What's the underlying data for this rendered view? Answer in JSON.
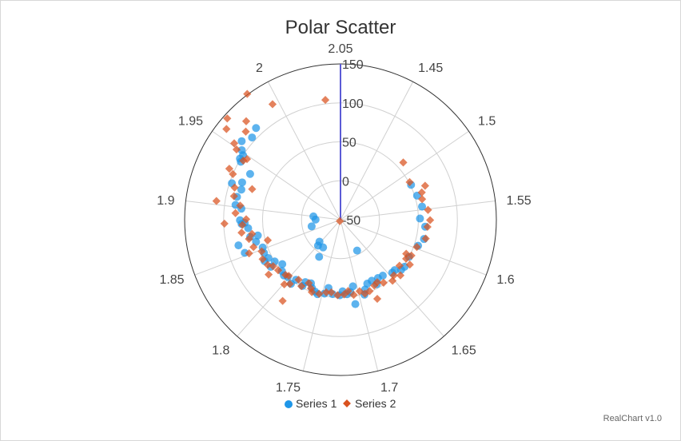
{
  "chart_data": {
    "type": "scatter",
    "coordinate_system": "polar",
    "title": "Polar Scatter",
    "credit": "RealChart v1.0",
    "angular_axis": {
      "ticks": [
        "1.45",
        "1.5",
        "1.55",
        "1.6",
        "1.65",
        "1.7",
        "1.75",
        "1.8",
        "1.85",
        "1.9",
        "1.95",
        "2",
        "2.05"
      ],
      "range": [
        1.4,
        2.05
      ],
      "direction": "clockwise",
      "start": "top"
    },
    "radial_axis": {
      "ticks": [
        "-50",
        "0",
        "50",
        "100",
        "150"
      ],
      "range": [
        -50,
        150
      ]
    },
    "grid": true,
    "legend": {
      "position": "bottom",
      "entries": [
        "Series 1",
        "Series 2"
      ]
    },
    "colors": {
      "series1": "#1e96e8",
      "series2": "#d9521f",
      "highlight_axis": "#5b5bd6",
      "grid": "#d0d0d0",
      "outer_ring": "#333333"
    },
    "series": [
      {
        "name": "Series 1",
        "marker": "circle",
        "points": [
          [
            1.965,
            105
          ],
          [
            1.973,
            110
          ],
          [
            1.957,
            112
          ],
          [
            1.951,
            105
          ],
          [
            1.948,
            100
          ],
          [
            1.942,
            98
          ],
          [
            1.944,
            101
          ],
          [
            1.936,
            80
          ],
          [
            1.925,
            85
          ],
          [
            1.921,
            97
          ],
          [
            1.918,
            83
          ],
          [
            1.91,
            86
          ],
          [
            1.902,
            86
          ],
          [
            1.899,
            78
          ],
          [
            1.887,
            79
          ],
          [
            1.884,
            73
          ],
          [
            1.883,
            77
          ],
          [
            1.878,
            69
          ],
          [
            1.868,
            68
          ],
          [
            1.862,
            85
          ],
          [
            1.853,
            80
          ],
          [
            1.861,
            62
          ],
          [
            1.868,
            58
          ],
          [
            1.852,
            56
          ],
          [
            1.845,
            57
          ],
          [
            1.836,
            61
          ],
          [
            1.837,
            55
          ],
          [
            1.826,
            58
          ],
          [
            1.829,
            50
          ],
          [
            1.82,
            44
          ],
          [
            1.813,
            50
          ],
          [
            1.807,
            52
          ],
          [
            1.802,
            50
          ],
          [
            1.793,
            54
          ],
          [
            1.791,
            46
          ],
          [
            1.779,
            48
          ],
          [
            1.778,
            42
          ],
          [
            1.77,
            40
          ],
          [
            1.766,
            45
          ],
          [
            1.76,
            48
          ],
          [
            1.756,
            50
          ],
          [
            1.747,
            47
          ],
          [
            1.743,
            39
          ],
          [
            1.736,
            46
          ],
          [
            1.726,
            47
          ],
          [
            1.722,
            42
          ],
          [
            1.716,
            46
          ],
          [
            1.711,
            44
          ],
          [
            1.706,
            37
          ],
          [
            1.693,
            51
          ],
          [
            1.69,
            45
          ],
          [
            1.684,
            39
          ],
          [
            1.676,
            38
          ],
          [
            1.672,
            45
          ],
          [
            1.666,
            39
          ],
          [
            1.658,
            40
          ],
          [
            1.645,
            45
          ],
          [
            1.64,
            45
          ],
          [
            1.634,
            51
          ],
          [
            1.628,
            52
          ],
          [
            1.614,
            50
          ],
          [
            1.596,
            55
          ],
          [
            1.586,
            60
          ],
          [
            1.571,
            59
          ],
          [
            1.561,
            52
          ],
          [
            1.546,
            56
          ],
          [
            1.531,
            53
          ],
          [
            1.515,
            51
          ],
          [
            1.707,
            60
          ],
          [
            1.779,
            5
          ],
          [
            1.783,
            -8
          ],
          [
            1.799,
            -6
          ],
          [
            1.804,
            -11
          ],
          [
            1.9,
            -15
          ],
          [
            1.888,
            -18
          ],
          [
            1.864,
            -12
          ],
          [
            1.674,
            -5
          ]
        ]
      },
      {
        "name": "Series 2",
        "marker": "diamond",
        "points": [
          [
            1.995,
            122
          ],
          [
            1.971,
            125
          ],
          [
            1.965,
            116
          ],
          [
            1.952,
            118
          ],
          [
            1.949,
            111
          ],
          [
            1.944,
            96
          ],
          [
            1.932,
            107
          ],
          [
            1.929,
            100
          ],
          [
            1.918,
            92
          ],
          [
            1.91,
            90
          ],
          [
            1.902,
            80
          ],
          [
            1.894,
            85
          ],
          [
            1.888,
            71
          ],
          [
            1.882,
            76
          ],
          [
            1.874,
            78
          ],
          [
            1.871,
            65
          ],
          [
            1.866,
            70
          ],
          [
            1.856,
            67
          ],
          [
            1.851,
            75
          ],
          [
            1.848,
            59
          ],
          [
            1.839,
            62
          ],
          [
            1.83,
            60
          ],
          [
            1.825,
            55
          ],
          [
            1.817,
            53
          ],
          [
            1.806,
            50
          ],
          [
            1.802,
            48
          ],
          [
            1.799,
            60
          ],
          [
            1.794,
            55
          ],
          [
            1.788,
            44
          ],
          [
            1.78,
            49
          ],
          [
            1.773,
            41
          ],
          [
            1.767,
            46
          ],
          [
            1.764,
            50
          ],
          [
            1.754,
            49
          ],
          [
            1.745,
            45
          ],
          [
            1.738,
            44
          ],
          [
            1.729,
            47
          ],
          [
            1.72,
            46
          ],
          [
            1.714,
            42
          ],
          [
            1.707,
            48
          ],
          [
            1.698,
            45
          ],
          [
            1.692,
            50
          ],
          [
            1.685,
            49
          ],
          [
            1.676,
            45
          ],
          [
            1.67,
            43
          ],
          [
            1.663,
            48
          ],
          [
            1.652,
            53
          ],
          [
            1.646,
            49
          ],
          [
            1.64,
            55
          ],
          [
            1.631,
            46
          ],
          [
            1.622,
            56
          ],
          [
            1.618,
            48
          ],
          [
            1.611,
            52
          ],
          [
            1.598,
            54
          ],
          [
            1.585,
            62
          ],
          [
            1.571,
            62
          ],
          [
            1.563,
            65
          ],
          [
            1.551,
            63
          ],
          [
            1.529,
            60
          ],
          [
            1.511,
            51
          ],
          [
            1.903,
            111
          ],
          [
            1.922,
            70
          ],
          [
            1.884,
            99
          ],
          [
            1.82,
            66
          ],
          [
            1.789,
            78
          ],
          [
            1.771,
            -48
          ],
          [
            1.859,
            47
          ],
          [
            1.947,
            93
          ],
          [
            1.957,
            137
          ],
          [
            1.963,
            145
          ],
          [
            1.984,
            151
          ],
          [
            2.037,
            105
          ],
          [
            1.486,
            59
          ],
          [
            1.523,
            67
          ],
          [
            1.537,
            58
          ],
          [
            1.68,
            62
          ],
          [
            1.612,
            45
          ]
        ]
      }
    ]
  }
}
